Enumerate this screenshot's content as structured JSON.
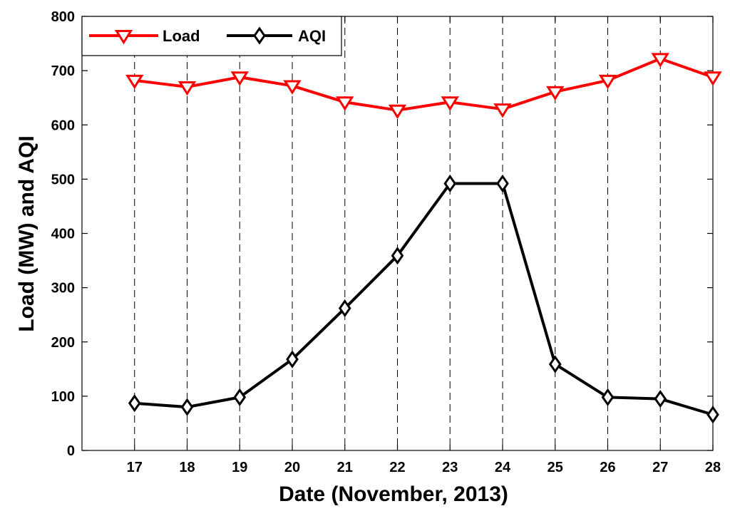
{
  "chart_data": {
    "type": "line",
    "title": "",
    "xlabel": "Date (November, 2013)",
    "ylabel": "Load (MW) and AQI",
    "x": [
      17,
      18,
      19,
      20,
      21,
      22,
      23,
      24,
      25,
      26,
      27,
      28
    ],
    "xlim": [
      16,
      28
    ],
    "ylim": [
      0,
      800
    ],
    "yticks": [
      0,
      100,
      200,
      300,
      400,
      500,
      600,
      700,
      800
    ],
    "grid": "vertical dashed lines at each x tick",
    "legend_position": "top-left",
    "series": [
      {
        "name": "Load",
        "color": "#ff0000",
        "marker": "down-triangle",
        "values": [
          682,
          670,
          688,
          672,
          642,
          627,
          642,
          629,
          661,
          682,
          722,
          688
        ]
      },
      {
        "name": "AQI",
        "color": "#000000",
        "marker": "diamond",
        "values": [
          87,
          80,
          98,
          168,
          262,
          359,
          492,
          492,
          159,
          98,
          95,
          66
        ]
      }
    ]
  }
}
